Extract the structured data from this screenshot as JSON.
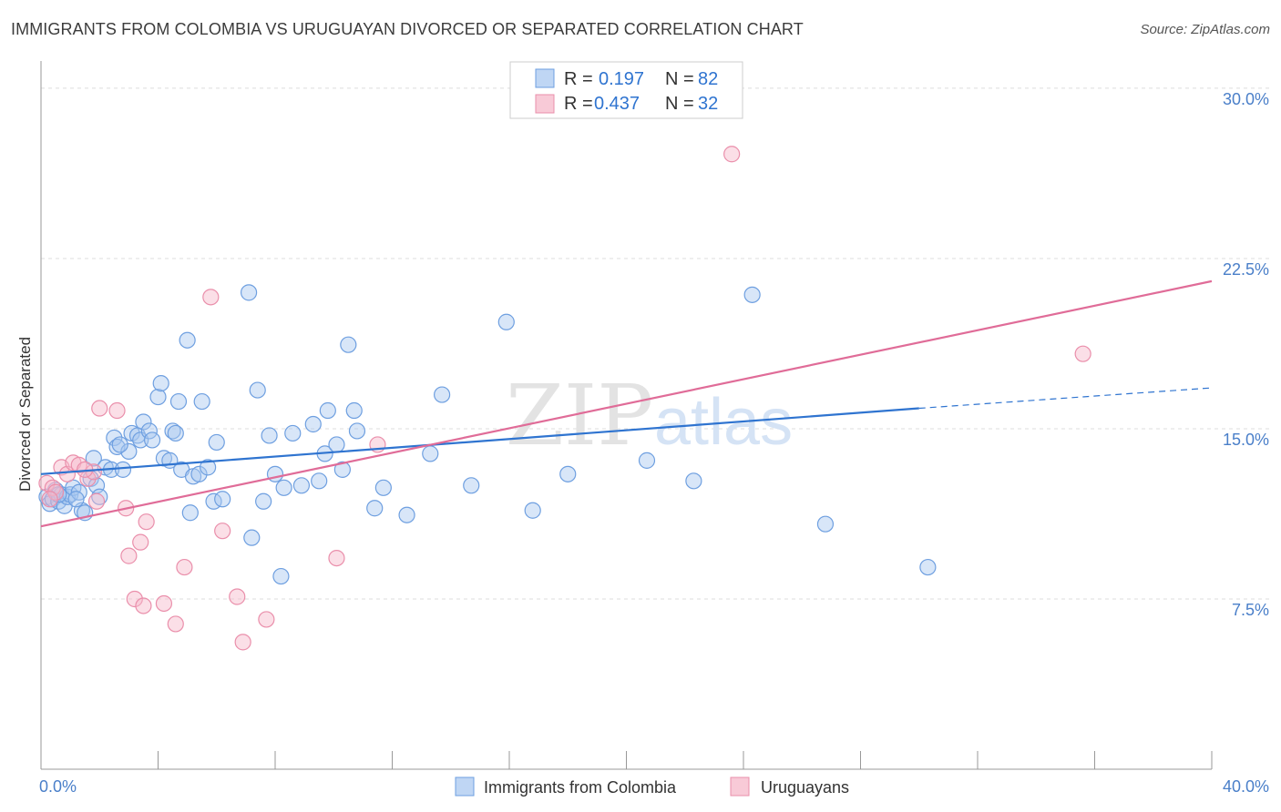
{
  "title": "IMMIGRANTS FROM COLOMBIA VS URUGUAYAN DIVORCED OR SEPARATED CORRELATION CHART",
  "source": "Source: ZipAtlas.com",
  "watermark": {
    "zip": "ZIP",
    "atlas": "atlas"
  },
  "colors": {
    "blue_fill": "#a9c8f0",
    "blue_stroke": "#6e9fe0",
    "blue_line": "#2f74d0",
    "pink_fill": "#f6b8ca",
    "pink_stroke": "#ea8fab",
    "pink_line": "#e06c98",
    "stat_value": "#2f74d0",
    "grid": "#dddddd",
    "axis": "#999999"
  },
  "stats_legend": {
    "rows": [
      {
        "r_label": "R =",
        "r_value": "0.197",
        "n_label": "N =",
        "n_value": "82",
        "series": "blue"
      },
      {
        "r_label": "R =",
        "r_value": "0.437",
        "n_label": "N =",
        "n_value": "32",
        "series": "pink"
      }
    ]
  },
  "chart_data": {
    "type": "scatter",
    "title": "IMMIGRANTS FROM COLOMBIA VS URUGUAYAN DIVORCED OR SEPARATED CORRELATION CHART",
    "xlabel": "",
    "ylabel": "Divorced or Separated",
    "xlim": [
      0,
      40
    ],
    "ylim": [
      0,
      31
    ],
    "x_tick_labels": [
      {
        "value": 0,
        "label": "0.0%"
      },
      {
        "value": 40,
        "label": "40.0%"
      }
    ],
    "y_tick_labels": [
      {
        "value": 7.5,
        "label": "7.5%"
      },
      {
        "value": 15,
        "label": "15.0%"
      },
      {
        "value": 22.5,
        "label": "22.5%"
      },
      {
        "value": 30,
        "label": "30.0%"
      }
    ],
    "grid": true,
    "legend_position": "bottom-center",
    "series": [
      {
        "name": "Immigrants from Colombia",
        "color": "blue",
        "trend": {
          "x_start": 0,
          "y_start": 13.0,
          "x_solid_end": 30,
          "y_solid_end": 15.9,
          "x_end": 40,
          "y_end": 16.8
        },
        "points": [
          [
            0.2,
            12.0
          ],
          [
            0.3,
            11.7
          ],
          [
            0.4,
            11.9
          ],
          [
            0.5,
            12.3
          ],
          [
            0.6,
            11.8
          ],
          [
            0.7,
            12.1
          ],
          [
            0.8,
            11.6
          ],
          [
            0.9,
            12.0
          ],
          [
            1.0,
            12.1
          ],
          [
            1.1,
            12.4
          ],
          [
            1.3,
            12.2
          ],
          [
            1.4,
            11.4
          ],
          [
            1.5,
            11.3
          ],
          [
            1.7,
            12.8
          ],
          [
            1.8,
            13.7
          ],
          [
            1.9,
            12.5
          ],
          [
            2.0,
            12.0
          ],
          [
            2.2,
            13.3
          ],
          [
            2.4,
            13.2
          ],
          [
            2.5,
            14.6
          ],
          [
            2.6,
            14.2
          ],
          [
            2.8,
            13.2
          ],
          [
            3.0,
            14.0
          ],
          [
            3.1,
            14.8
          ],
          [
            3.3,
            14.7
          ],
          [
            3.4,
            14.5
          ],
          [
            3.5,
            15.3
          ],
          [
            3.7,
            14.9
          ],
          [
            3.8,
            14.5
          ],
          [
            4.0,
            16.4
          ],
          [
            4.1,
            17.0
          ],
          [
            4.2,
            13.7
          ],
          [
            4.4,
            13.6
          ],
          [
            4.5,
            14.9
          ],
          [
            4.7,
            16.2
          ],
          [
            4.8,
            13.2
          ],
          [
            5.0,
            18.9
          ],
          [
            5.1,
            11.3
          ],
          [
            5.2,
            12.9
          ],
          [
            5.4,
            13.0
          ],
          [
            5.5,
            16.2
          ],
          [
            5.7,
            13.3
          ],
          [
            5.9,
            11.8
          ],
          [
            6.0,
            14.4
          ],
          [
            6.2,
            11.9
          ],
          [
            7.1,
            21.0
          ],
          [
            7.2,
            10.2
          ],
          [
            7.4,
            16.7
          ],
          [
            7.6,
            11.8
          ],
          [
            7.8,
            14.7
          ],
          [
            8.0,
            13.0
          ],
          [
            8.2,
            8.5
          ],
          [
            8.3,
            12.4
          ],
          [
            8.6,
            14.8
          ],
          [
            8.9,
            12.5
          ],
          [
            9.3,
            15.2
          ],
          [
            9.5,
            12.7
          ],
          [
            9.7,
            13.9
          ],
          [
            9.8,
            15.8
          ],
          [
            10.1,
            14.3
          ],
          [
            10.3,
            13.2
          ],
          [
            10.5,
            18.7
          ],
          [
            10.7,
            15.8
          ],
          [
            10.8,
            14.9
          ],
          [
            11.4,
            11.5
          ],
          [
            11.7,
            12.4
          ],
          [
            12.5,
            11.2
          ],
          [
            13.3,
            13.9
          ],
          [
            13.7,
            16.5
          ],
          [
            14.7,
            12.5
          ],
          [
            15.9,
            19.7
          ],
          [
            16.8,
            11.4
          ],
          [
            18.0,
            13.0
          ],
          [
            20.7,
            13.6
          ],
          [
            22.3,
            12.7
          ],
          [
            24.3,
            20.9
          ],
          [
            26.8,
            10.8
          ],
          [
            30.3,
            8.9
          ],
          [
            4.6,
            14.8
          ],
          [
            2.7,
            14.3
          ],
          [
            1.2,
            11.9
          ],
          [
            0.6,
            12.1
          ]
        ]
      },
      {
        "name": "Uruguayans",
        "color": "pink",
        "trend": {
          "x_start": 0,
          "y_start": 10.7,
          "x_end": 40,
          "y_end": 21.5
        },
        "points": [
          [
            0.2,
            12.6
          ],
          [
            0.4,
            12.4
          ],
          [
            0.5,
            12.2
          ],
          [
            0.7,
            13.3
          ],
          [
            0.9,
            13.0
          ],
          [
            1.1,
            13.5
          ],
          [
            1.3,
            13.4
          ],
          [
            1.6,
            12.8
          ],
          [
            1.8,
            13.1
          ],
          [
            1.9,
            11.8
          ],
          [
            2.0,
            15.9
          ],
          [
            2.6,
            15.8
          ],
          [
            2.9,
            11.5
          ],
          [
            3.0,
            9.4
          ],
          [
            3.2,
            7.5
          ],
          [
            3.4,
            10.0
          ],
          [
            3.5,
            7.2
          ],
          [
            3.6,
            10.9
          ],
          [
            4.2,
            7.3
          ],
          [
            4.6,
            6.4
          ],
          [
            4.9,
            8.9
          ],
          [
            5.8,
            20.8
          ],
          [
            6.2,
            10.5
          ],
          [
            6.7,
            7.6
          ],
          [
            6.9,
            5.6
          ],
          [
            7.7,
            6.6
          ],
          [
            10.1,
            9.3
          ],
          [
            11.5,
            14.3
          ],
          [
            23.6,
            27.1
          ],
          [
            35.6,
            18.3
          ],
          [
            1.5,
            13.2
          ],
          [
            0.3,
            11.9
          ]
        ]
      }
    ]
  },
  "bottom_legend": {
    "items": [
      {
        "label": "Immigrants from Colombia",
        "series": "blue"
      },
      {
        "label": "Uruguayans",
        "series": "pink"
      }
    ]
  }
}
